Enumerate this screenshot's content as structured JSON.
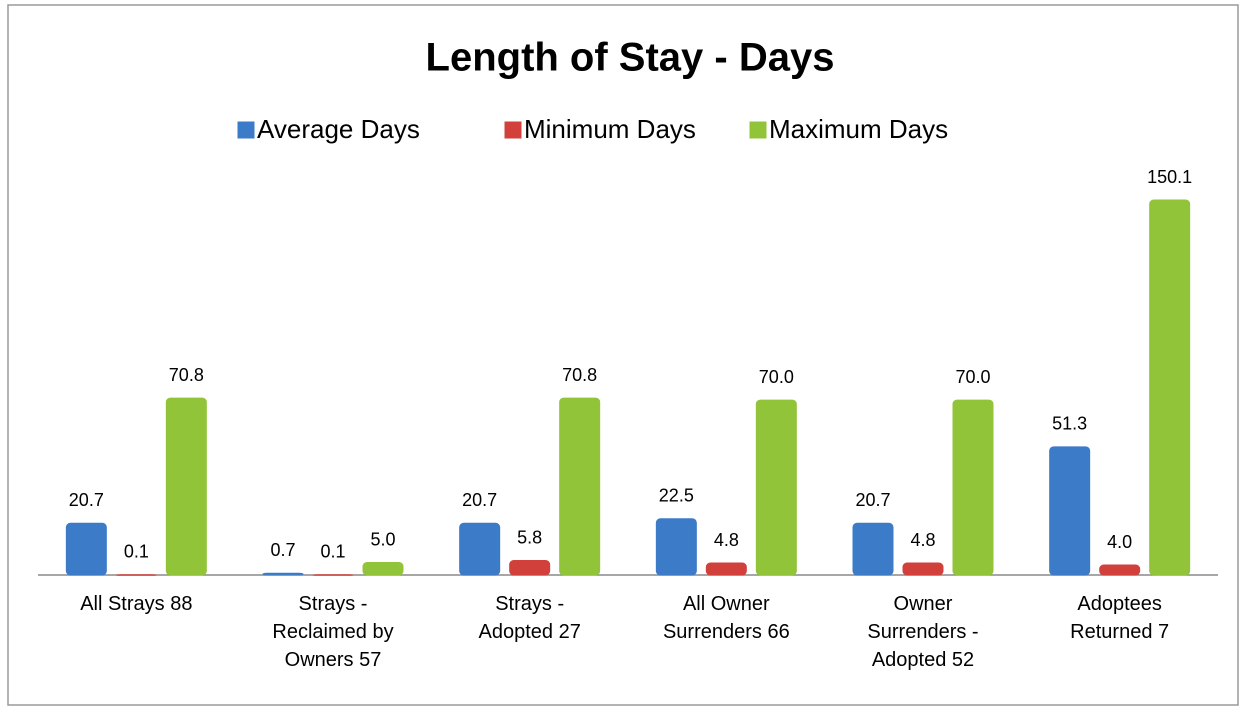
{
  "chart_data": {
    "type": "bar",
    "title": "Length of Stay - Days",
    "categories": [
      "All Strays 88",
      "Strays - Reclaimed by Owners 57",
      "Strays - Adopted 27",
      "All Owner Surrenders 66",
      "Owner Surrenders - Adopted 52",
      "Adoptees Returned 7"
    ],
    "series": [
      {
        "name": "Average Days",
        "color": "#3c7bc8",
        "values": [
          20.7,
          0.7,
          20.7,
          22.5,
          20.7,
          51.3
        ],
        "value_labels": [
          "20.7",
          "0.7",
          "20.7",
          "22.5",
          "20.7",
          "51.3"
        ]
      },
      {
        "name": "Minimum Days",
        "color": "#d2403c",
        "values": [
          0.1,
          0.1,
          5.8,
          4.8,
          4.8,
          4.0
        ],
        "value_labels": [
          "0.1",
          "0.1",
          "5.8",
          "4.8",
          "4.8",
          "4.0"
        ]
      },
      {
        "name": "Maximum Days",
        "color": "#92c43a",
        "values": [
          70.8,
          5.0,
          70.8,
          70.0,
          70.0,
          150.1
        ],
        "value_labels": [
          "70.8",
          "5.0",
          "70.8",
          "70.0",
          "70.0",
          "150.1"
        ]
      }
    ],
    "legend": "top"
  }
}
